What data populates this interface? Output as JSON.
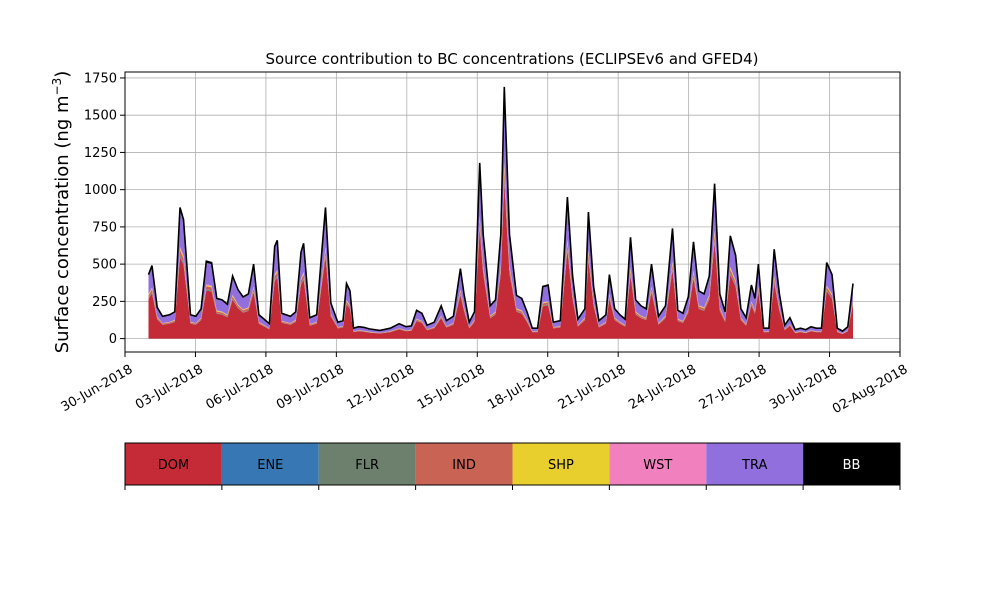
{
  "chart_data": {
    "type": "area",
    "stacked": true,
    "title": "Source contribution to BC concentrations (ECLIPSEv6 and GFED4)",
    "ylabel": "Surface concentration (ng m",
    "ylabel_sup": "−3",
    "ylabel_end": ")",
    "xlim": [
      "2018-06-30",
      "2018-08-02"
    ],
    "x_start": "2018-07-01",
    "x_end": "2018-07-31",
    "ylim": [
      -90,
      1790
    ],
    "yticks": [
      0,
      250,
      500,
      750,
      1000,
      1250,
      1500,
      1750
    ],
    "ytick_labels": [
      "0",
      "250",
      "500",
      "750",
      "1000",
      "1250",
      "1500",
      "1750"
    ],
    "xticks": [
      "2018-06-30",
      "2018-07-03",
      "2018-07-06",
      "2018-07-09",
      "2018-07-12",
      "2018-07-15",
      "2018-07-18",
      "2018-07-21",
      "2018-07-24",
      "2018-07-27",
      "2018-07-30",
      "2018-08-02"
    ],
    "xtick_labels": [
      "30-Jun-2018",
      "03-Jul-2018",
      "06-Jul-2018",
      "09-Jul-2018",
      "12-Jul-2018",
      "15-Jul-2018",
      "18-Jul-2018",
      "21-Jul-2018",
      "24-Jul-2018",
      "27-Jul-2018",
      "30-Jul-2018",
      "02-Aug-2018"
    ],
    "grid": true,
    "total_profile": [
      [
        "2018-07-01 00:00",
        430
      ],
      [
        "2018-07-01 04:00",
        490
      ],
      [
        "2018-07-01 10:00",
        210
      ],
      [
        "2018-07-01 16:00",
        150
      ],
      [
        "2018-07-02 00:00",
        160
      ],
      [
        "2018-07-02 06:00",
        180
      ],
      [
        "2018-07-02 12:00",
        880
      ],
      [
        "2018-07-02 16:00",
        800
      ],
      [
        "2018-07-03 00:00",
        160
      ],
      [
        "2018-07-03 06:00",
        150
      ],
      [
        "2018-07-03 12:00",
        200
      ],
      [
        "2018-07-03 18:00",
        520
      ],
      [
        "2018-07-04 00:00",
        510
      ],
      [
        "2018-07-04 06:00",
        270
      ],
      [
        "2018-07-04 12:00",
        260
      ],
      [
        "2018-07-04 18:00",
        230
      ],
      [
        "2018-07-05 00:00",
        420
      ],
      [
        "2018-07-05 06:00",
        330
      ],
      [
        "2018-07-05 12:00",
        280
      ],
      [
        "2018-07-05 18:00",
        300
      ],
      [
        "2018-07-06 00:00",
        500
      ],
      [
        "2018-07-06 06:00",
        160
      ],
      [
        "2018-07-06 12:00",
        130
      ],
      [
        "2018-07-06 18:00",
        100
      ],
      [
        "2018-07-07 00:00",
        620
      ],
      [
        "2018-07-07 03:00",
        660
      ],
      [
        "2018-07-07 08:00",
        170
      ],
      [
        "2018-07-07 18:00",
        150
      ],
      [
        "2018-07-08 00:00",
        180
      ],
      [
        "2018-07-08 06:00",
        580
      ],
      [
        "2018-07-08 09:00",
        640
      ],
      [
        "2018-07-08 16:00",
        140
      ],
      [
        "2018-07-09 00:00",
        160
      ],
      [
        "2018-07-09 06:00",
        600
      ],
      [
        "2018-07-09 10:00",
        880
      ],
      [
        "2018-07-09 16:00",
        240
      ],
      [
        "2018-07-10 00:00",
        110
      ],
      [
        "2018-07-10 06:00",
        120
      ],
      [
        "2018-07-10 10:00",
        370
      ],
      [
        "2018-07-10 14:00",
        320
      ],
      [
        "2018-07-10 18:00",
        70
      ],
      [
        "2018-07-11 00:00",
        80
      ],
      [
        "2018-07-11 06:00",
        75
      ],
      [
        "2018-07-11 12:00",
        65
      ],
      [
        "2018-07-12 00:00",
        55
      ],
      [
        "2018-07-12 12:00",
        70
      ],
      [
        "2018-07-12 22:00",
        100
      ],
      [
        "2018-07-13 06:00",
        80
      ],
      [
        "2018-07-13 12:00",
        85
      ],
      [
        "2018-07-13 18:00",
        190
      ],
      [
        "2018-07-14 00:00",
        170
      ],
      [
        "2018-07-14 06:00",
        90
      ],
      [
        "2018-07-14 14:00",
        110
      ],
      [
        "2018-07-14 22:00",
        220
      ],
      [
        "2018-07-15 04:00",
        120
      ],
      [
        "2018-07-15 12:00",
        150
      ],
      [
        "2018-07-15 20:00",
        470
      ],
      [
        "2018-07-16 00:00",
        300
      ],
      [
        "2018-07-16 06:00",
        110
      ],
      [
        "2018-07-16 12:00",
        180
      ],
      [
        "2018-07-16 18:00",
        1180
      ],
      [
        "2018-07-16 22:00",
        700
      ],
      [
        "2018-07-17 06:00",
        220
      ],
      [
        "2018-07-17 12:00",
        260
      ],
      [
        "2018-07-17 18:00",
        700
      ],
      [
        "2018-07-17 22:00",
        1690
      ],
      [
        "2018-07-18 04:00",
        700
      ],
      [
        "2018-07-18 12:00",
        290
      ],
      [
        "2018-07-18 18:00",
        270
      ],
      [
        "2018-07-19 00:00",
        180
      ],
      [
        "2018-07-19 06:00",
        70
      ],
      [
        "2018-07-19 12:00",
        70
      ],
      [
        "2018-07-19 18:00",
        350
      ],
      [
        "2018-07-20 00:00",
        360
      ],
      [
        "2018-07-20 06:00",
        110
      ],
      [
        "2018-07-20 14:00",
        120
      ],
      [
        "2018-07-20 22:00",
        950
      ],
      [
        "2018-07-21 04:00",
        420
      ],
      [
        "2018-07-21 10:00",
        130
      ],
      [
        "2018-07-21 18:00",
        200
      ],
      [
        "2018-07-21 22:00",
        850
      ],
      [
        "2018-07-22 04:00",
        350
      ],
      [
        "2018-07-22 10:00",
        120
      ],
      [
        "2018-07-22 18:00",
        160
      ],
      [
        "2018-07-22 22:00",
        430
      ],
      [
        "2018-07-23 04:00",
        200
      ],
      [
        "2018-07-23 10:00",
        160
      ],
      [
        "2018-07-23 16:00",
        130
      ],
      [
        "2018-07-23 22:00",
        680
      ],
      [
        "2018-07-24 04:00",
        260
      ],
      [
        "2018-07-24 10:00",
        220
      ],
      [
        "2018-07-24 16:00",
        200
      ],
      [
        "2018-07-24 22:00",
        500
      ],
      [
        "2018-07-25 06:00",
        150
      ],
      [
        "2018-07-25 14:00",
        220
      ],
      [
        "2018-07-25 22:00",
        740
      ],
      [
        "2018-07-26 04:00",
        190
      ],
      [
        "2018-07-26 10:00",
        170
      ],
      [
        "2018-07-26 16:00",
        280
      ],
      [
        "2018-07-26 22:00",
        650
      ],
      [
        "2018-07-27 04:00",
        320
      ],
      [
        "2018-07-27 10:00",
        300
      ],
      [
        "2018-07-27 16:00",
        420
      ],
      [
        "2018-07-27 22:00",
        1040
      ],
      [
        "2018-07-28 04:00",
        300
      ],
      [
        "2018-07-28 10:00",
        180
      ],
      [
        "2018-07-28 16:00",
        690
      ],
      [
        "2018-07-28 22:00",
        560
      ],
      [
        "2018-07-29 04:00",
        200
      ],
      [
        "2018-07-29 10:00",
        140
      ],
      [
        "2018-07-29 16:00",
        360
      ],
      [
        "2018-07-29 20:00",
        270
      ],
      [
        "2018-07-30 00:00",
        500
      ],
      [
        "2018-07-30 06:00",
        70
      ],
      [
        "2018-07-30 12:00",
        70
      ],
      [
        "2018-07-30 18:00",
        600
      ],
      [
        "2018-07-31 00:00",
        300
      ],
      [
        "2018-07-31 06:00",
        90
      ],
      [
        "2018-07-31 12:00",
        140
      ],
      [
        "2018-07-31 18:00",
        60
      ],
      [
        "2018-08-01 00:00",
        70
      ],
      [
        "2018-08-01 06:00",
        60
      ],
      [
        "2018-08-01 12:00",
        80
      ],
      [
        "2018-08-01 18:00",
        70
      ],
      [
        "2018-08-02 00:00",
        70
      ],
      [
        "2018-08-02 06:00",
        510
      ],
      [
        "2018-08-02 12:00",
        430
      ],
      [
        "2018-08-02 18:00",
        70
      ],
      [
        "2018-08-03 00:00",
        50
      ],
      [
        "2018-08-03 06:00",
        80
      ],
      [
        "2018-08-03 12:00",
        370
      ]
    ],
    "series": [
      {
        "name": "DOM",
        "color": "#c52a37",
        "share": 0.62
      },
      {
        "name": "ENE",
        "color": "#3778b4",
        "share": 0.005
      },
      {
        "name": "FLR",
        "color": "#6d7f6d",
        "share": 0.01
      },
      {
        "name": "IND",
        "color": "#c96454",
        "share": 0.04
      },
      {
        "name": "SHP",
        "color": "#e8cf2e",
        "share": 0.015
      },
      {
        "name": "WST",
        "color": "#f181be",
        "share": 0.01
      },
      {
        "name": "TRA",
        "color": "#9170de",
        "share": 0.28
      },
      {
        "name": "BB",
        "color": "#000000",
        "share": 0.02
      }
    ],
    "legend": {
      "placement": "bottom",
      "style": "colorbar"
    }
  }
}
